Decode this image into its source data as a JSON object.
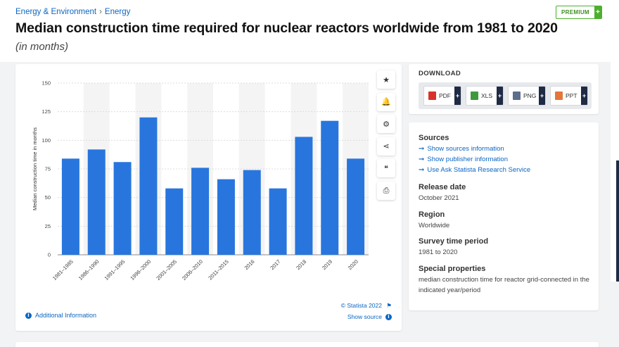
{
  "breadcrumb": {
    "parent": "Energy & Environment",
    "separator": "›",
    "current": "Energy"
  },
  "premium": {
    "label": "PREMIUM",
    "plus": "+"
  },
  "title": "Median construction time required for nuclear reactors worldwide from 1981 to 2020",
  "subtitle": "(in months)",
  "chart_data": {
    "type": "bar",
    "categories": [
      "1981-1985",
      "1986-1990",
      "1991-1995",
      "1996-2000",
      "2001-2005",
      "2006-2010",
      "2011-2015",
      "2016",
      "2017",
      "2018",
      "2019",
      "2020"
    ],
    "values": [
      84,
      92,
      81,
      120,
      58,
      76,
      66,
      74,
      58,
      103,
      117,
      84
    ],
    "ylabel": "Median construction time in months",
    "yticks": [
      0,
      25,
      50,
      75,
      100,
      125,
      150
    ],
    "ylim": [
      0,
      150
    ],
    "grid": true,
    "bar_color": "#2876dd",
    "stripe_color": "#f4f4f4"
  },
  "tools": [
    {
      "name": "star",
      "glyph": "★"
    },
    {
      "name": "bell",
      "glyph": "🔔"
    },
    {
      "name": "gear",
      "glyph": "⚙"
    },
    {
      "name": "share",
      "glyph": "⋖"
    },
    {
      "name": "quote",
      "glyph": "❝"
    },
    {
      "name": "print",
      "glyph": "⎙"
    }
  ],
  "footer": {
    "additional_info": "Additional Information",
    "copyright": "© Statista 2022",
    "show_source": "Show source"
  },
  "download": {
    "title": "DOWNLOAD",
    "buttons": [
      {
        "label": "PDF",
        "color": "#d8322b"
      },
      {
        "label": "XLS",
        "color": "#3c9a3c"
      },
      {
        "label": "PNG",
        "color": "#5b6e8c"
      },
      {
        "label": "PPT",
        "color": "#e3763a"
      }
    ]
  },
  "info": {
    "sources_heading": "Sources",
    "source_links": [
      "Show sources information",
      "Show publisher information",
      "Use Ask Statista Research Service"
    ],
    "release_heading": "Release date",
    "release_value": "October 2021",
    "region_heading": "Region",
    "region_value": "Worldwide",
    "period_heading": "Survey time period",
    "period_value": "1981 to 2020",
    "special_heading": "Special properties",
    "special_value": "median construction time for reactor grid-connected in the indicated year/period"
  }
}
